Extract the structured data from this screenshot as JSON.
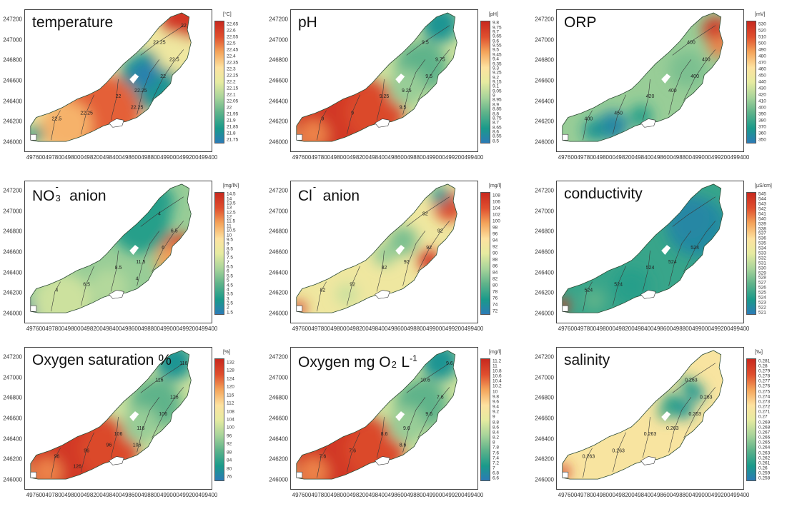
{
  "colors": {
    "ramp": [
      "#2c7bb6",
      "#1a9a8a",
      "#5fb38a",
      "#a6d39a",
      "#e6eba0",
      "#fde2a0",
      "#f4a35a",
      "#e0502f",
      "#c8281e"
    ],
    "outline": "#2b4a33",
    "contour": "#3a3a3a",
    "lake_hole": "#ffffff"
  },
  "axes": {
    "y_ticks": [
      "247200",
      "247000",
      "246800",
      "246600",
      "246400",
      "246200",
      "246000"
    ],
    "x_ticks": [
      "497600",
      "497800",
      "498000",
      "498200",
      "498400",
      "498600",
      "498800",
      "499000",
      "499200",
      "499400"
    ]
  },
  "panels": [
    {
      "title": "temperature",
      "title_sub": "",
      "title_sup": "",
      "title_suffix": "",
      "unit": "[°C]",
      "scale": [
        "22.65",
        "22.6",
        "22.55",
        "22.5",
        "22.45",
        "22.4",
        "22.35",
        "22.3",
        "22.25",
        "22.2",
        "22.15",
        "22.1",
        "22.05",
        "22",
        "21.95",
        "21.9",
        "21.85",
        "21.8",
        "21.75"
      ],
      "pattern": "east_hot_center_cool",
      "contour_labels": [
        "22.5",
        "22.25",
        "22",
        "22.25",
        "22",
        "22.25",
        "22.5",
        "22.25",
        "22"
      ]
    },
    {
      "title": "pH",
      "title_sub": "",
      "title_sup": "",
      "title_suffix": "",
      "unit": "[pH]",
      "scale": [
        "9.8",
        "9.75",
        "9.7",
        "9.65",
        "9.6",
        "9.55",
        "9.5",
        "9.45",
        "9.4",
        "9.35",
        "9.3",
        "9.25",
        "9.2",
        "9.15",
        "9.1",
        "9.05",
        "9",
        "8.95",
        "8.9",
        "8.85",
        "8.8",
        "8.75",
        "8.7",
        "8.65",
        "8.6",
        "8.55",
        "8.5"
      ],
      "pattern": "west_high_east_low",
      "contour_labels": [
        "9",
        "9",
        "9.25",
        "9.25",
        "9.5",
        "9.5",
        "9.75",
        "9.5"
      ]
    },
    {
      "title": "ORP",
      "title_sub": "",
      "title_sup": "",
      "title_suffix": "",
      "unit": "[mV]",
      "scale": [
        "530",
        "520",
        "510",
        "500",
        "490",
        "480",
        "470",
        "460",
        "450",
        "440",
        "430",
        "420",
        "410",
        "400",
        "390",
        "380",
        "370",
        "360",
        "350"
      ],
      "pattern": "mostly_low_ne_high",
      "contour_labels": [
        "400",
        "450",
        "420",
        "400",
        "400",
        "400",
        "400"
      ]
    },
    {
      "title": "NO",
      "title_sub": "3",
      "title_sup": "-",
      "title_suffix": "  anion",
      "unit": "[mg/lN]",
      "scale": [
        "14.5",
        "14",
        "13.5",
        "13",
        "12.5",
        "12",
        "11.5",
        "11",
        "10.5",
        "10",
        "9.5",
        "9",
        "8.5",
        "8",
        "7.5",
        "7",
        "6.5",
        "6",
        "5.5",
        "5",
        "4.5",
        "4",
        "3.5",
        "3",
        "2.5",
        "2",
        "1.5"
      ],
      "pattern": "se_high_ne_low",
      "contour_labels": [
        "4",
        "6.5",
        "8.5",
        "11.5",
        "6",
        "4",
        "6.5",
        "4"
      ]
    },
    {
      "title": "Cl",
      "title_sub": "",
      "title_sup": "-",
      "title_suffix": " anion",
      "unit": "[mg/l]",
      "scale": [
        "108",
        "106",
        "104",
        "102",
        "100",
        "98",
        "96",
        "94",
        "92",
        "90",
        "88",
        "86",
        "84",
        "82",
        "80",
        "78",
        "76",
        "74",
        "72"
      ],
      "pattern": "yellow_mixed",
      "contour_labels": [
        "82",
        "92",
        "82",
        "92",
        "92",
        "92",
        "92"
      ]
    },
    {
      "title": "conductivity",
      "title_sub": "",
      "title_sup": "",
      "title_suffix": "",
      "unit": "[µS/cm]",
      "scale": [
        "545",
        "544",
        "543",
        "542",
        "541",
        "540",
        "539",
        "538",
        "537",
        "536",
        "535",
        "534",
        "533",
        "532",
        "531",
        "530",
        "529",
        "528",
        "527",
        "526",
        "525",
        "524",
        "523",
        "522",
        "521"
      ],
      "pattern": "all_low_blue",
      "contour_labels": [
        "524",
        "524",
        "524",
        "524",
        "524"
      ]
    },
    {
      "title": "Oxygen saturation %",
      "title_sub": "",
      "title_sup": "",
      "title_suffix": "",
      "unit": "[%]",
      "scale": [
        "132",
        "128",
        "124",
        "120",
        "116",
        "112",
        "108",
        "104",
        "100",
        "96",
        "92",
        "88",
        "84",
        "80",
        "76"
      ],
      "pattern": "west_high_east_low",
      "contour_labels": [
        "96",
        "96",
        "106",
        "116",
        "106",
        "116",
        "126",
        "106",
        "116",
        "96",
        "126"
      ]
    },
    {
      "title": "Oxygen mg O",
      "title_sub": "2",
      "title_sup": "",
      "title_suffix": " L",
      "title_suffix_sup": "-1",
      "unit": "[mg/l]",
      "scale": [
        "11.2",
        "11",
        "10.8",
        "10.6",
        "10.4",
        "10.2",
        "10",
        "9.8",
        "9.6",
        "9.4",
        "9.2",
        "9",
        "8.8",
        "8.6",
        "8.4",
        "8.2",
        "8",
        "7.8",
        "7.6",
        "7.4",
        "7.2",
        "7",
        "6.8",
        "6.6"
      ],
      "pattern": "west_high_east_low",
      "contour_labels": [
        "7.6",
        "7.6",
        "8.6",
        "9.6",
        "9.6",
        "10.6",
        "7.6",
        "8.6",
        "9.6"
      ]
    },
    {
      "title": "salinity",
      "title_sub": "",
      "title_sup": "",
      "title_suffix": "",
      "unit": "[‰]",
      "scale": [
        "0.281",
        "0.28",
        "0.279",
        "0.278",
        "0.277",
        "0.276",
        "0.275",
        "0.274",
        "0.273",
        "0.272",
        "0.271",
        "0.27",
        "0.269",
        "0.268",
        "0.267",
        "0.266",
        "0.265",
        "0.264",
        "0.263",
        "0.262",
        "0.261",
        "0.26",
        "0.259",
        "0.258"
      ],
      "pattern": "uniform_yellow_center_blue",
      "contour_labels": [
        "0.263",
        "0.263",
        "0.263",
        "0.263",
        "0.263",
        "0.263",
        "0.263"
      ]
    }
  ]
}
